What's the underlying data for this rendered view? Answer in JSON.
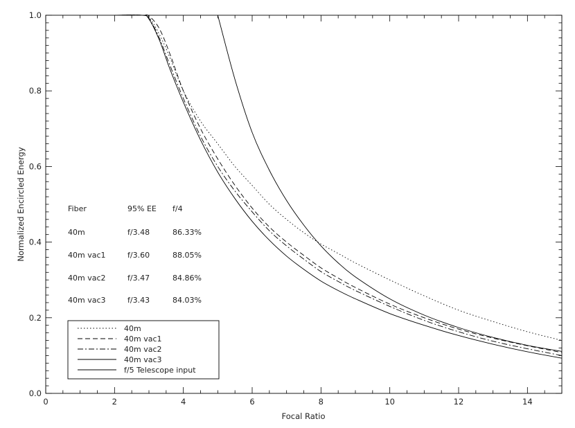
{
  "chart_data": {
    "type": "line",
    "xlabel": "Focal Ratio",
    "ylabel": "Normalized Encircled Energy",
    "xlim": [
      0,
      15
    ],
    "ylim": [
      0.0,
      1.0
    ],
    "xticks": [
      "0",
      "2",
      "4",
      "6",
      "8",
      "10",
      "12",
      "14"
    ],
    "yticks": [
      "0.0",
      "0.2",
      "0.4",
      "0.6",
      "0.8",
      "1.0"
    ],
    "grid": false,
    "legend_position": "bottom-left",
    "series": [
      {
        "name": "40m",
        "dash": "1.5,3",
        "points": [
          [
            2.0,
            1.0
          ],
          [
            2.8,
            1.0
          ],
          [
            3.0,
            0.995
          ],
          [
            3.3,
            0.95
          ],
          [
            3.6,
            0.89
          ],
          [
            4.0,
            0.8
          ],
          [
            4.5,
            0.72
          ],
          [
            5.0,
            0.66
          ],
          [
            5.5,
            0.6
          ],
          [
            6.0,
            0.55
          ],
          [
            6.5,
            0.5
          ],
          [
            7.0,
            0.46
          ],
          [
            7.5,
            0.425
          ],
          [
            8.0,
            0.395
          ],
          [
            8.5,
            0.37
          ],
          [
            9.0,
            0.345
          ],
          [
            10.0,
            0.3
          ],
          [
            11.0,
            0.258
          ],
          [
            12.0,
            0.22
          ],
          [
            13.0,
            0.19
          ],
          [
            14.0,
            0.163
          ],
          [
            15.0,
            0.14
          ]
        ]
      },
      {
        "name": "40m vac1",
        "dash": "7,4",
        "points": [
          [
            2.0,
            1.0
          ],
          [
            2.8,
            1.0
          ],
          [
            3.0,
            0.998
          ],
          [
            3.3,
            0.965
          ],
          [
            3.6,
            0.9
          ],
          [
            4.0,
            0.8
          ],
          [
            4.5,
            0.7
          ],
          [
            5.0,
            0.62
          ],
          [
            5.5,
            0.55
          ],
          [
            6.0,
            0.49
          ],
          [
            6.5,
            0.44
          ],
          [
            7.0,
            0.4
          ],
          [
            7.5,
            0.365
          ],
          [
            8.0,
            0.332
          ],
          [
            8.5,
            0.305
          ],
          [
            9.0,
            0.28
          ],
          [
            10.0,
            0.236
          ],
          [
            11.0,
            0.2
          ],
          [
            12.0,
            0.17
          ],
          [
            13.0,
            0.146
          ],
          [
            14.0,
            0.126
          ],
          [
            15.0,
            0.108
          ]
        ]
      },
      {
        "name": "40m vac2",
        "dash": "8,3,2,3",
        "points": [
          [
            2.0,
            1.0
          ],
          [
            2.8,
            1.0
          ],
          [
            3.0,
            0.992
          ],
          [
            3.3,
            0.94
          ],
          [
            3.6,
            0.87
          ],
          [
            4.0,
            0.78
          ],
          [
            4.5,
            0.68
          ],
          [
            5.0,
            0.6
          ],
          [
            5.5,
            0.535
          ],
          [
            6.0,
            0.48
          ],
          [
            6.5,
            0.43
          ],
          [
            7.0,
            0.39
          ],
          [
            7.5,
            0.355
          ],
          [
            8.0,
            0.322
          ],
          [
            8.5,
            0.296
          ],
          [
            9.0,
            0.272
          ],
          [
            10.0,
            0.23
          ],
          [
            11.0,
            0.193
          ],
          [
            12.0,
            0.163
          ],
          [
            13.0,
            0.138
          ],
          [
            14.0,
            0.118
          ],
          [
            15.0,
            0.1
          ]
        ]
      },
      {
        "name": "40m vac3",
        "dash": "",
        "points": [
          [
            2.0,
            1.0
          ],
          [
            2.8,
            1.0
          ],
          [
            3.0,
            0.99
          ],
          [
            3.3,
            0.935
          ],
          [
            3.6,
            0.86
          ],
          [
            4.0,
            0.77
          ],
          [
            4.5,
            0.67
          ],
          [
            5.0,
            0.585
          ],
          [
            5.5,
            0.515
          ],
          [
            6.0,
            0.455
          ],
          [
            6.5,
            0.405
          ],
          [
            7.0,
            0.363
          ],
          [
            7.5,
            0.328
          ],
          [
            8.0,
            0.297
          ],
          [
            8.5,
            0.272
          ],
          [
            9.0,
            0.25
          ],
          [
            10.0,
            0.211
          ],
          [
            11.0,
            0.18
          ],
          [
            12.0,
            0.153
          ],
          [
            13.0,
            0.13
          ],
          [
            14.0,
            0.11
          ],
          [
            15.0,
            0.093
          ]
        ]
      },
      {
        "name": "f/5 Telescope input",
        "dash": "",
        "points": [
          [
            5.0,
            1.0
          ],
          [
            5.5,
            0.83
          ],
          [
            6.0,
            0.69
          ],
          [
            6.5,
            0.59
          ],
          [
            7.0,
            0.51
          ],
          [
            7.5,
            0.445
          ],
          [
            8.0,
            0.39
          ],
          [
            8.5,
            0.345
          ],
          [
            9.0,
            0.308
          ],
          [
            10.0,
            0.25
          ],
          [
            11.0,
            0.207
          ],
          [
            12.0,
            0.174
          ],
          [
            13.0,
            0.148
          ],
          [
            14.0,
            0.127
          ],
          [
            15.0,
            0.111
          ]
        ]
      }
    ],
    "annotation_table": {
      "header": [
        "Fiber",
        "95% EE",
        "f/4"
      ],
      "rows": [
        [
          "40m",
          "f/3.48",
          "86.33%"
        ],
        [
          "40m vac1",
          "f/3.60",
          "88.05%"
        ],
        [
          "40m vac2",
          "f/3.47",
          "84.86%"
        ],
        [
          "40m vac3",
          "f/3.43",
          "84.03%"
        ]
      ]
    }
  }
}
